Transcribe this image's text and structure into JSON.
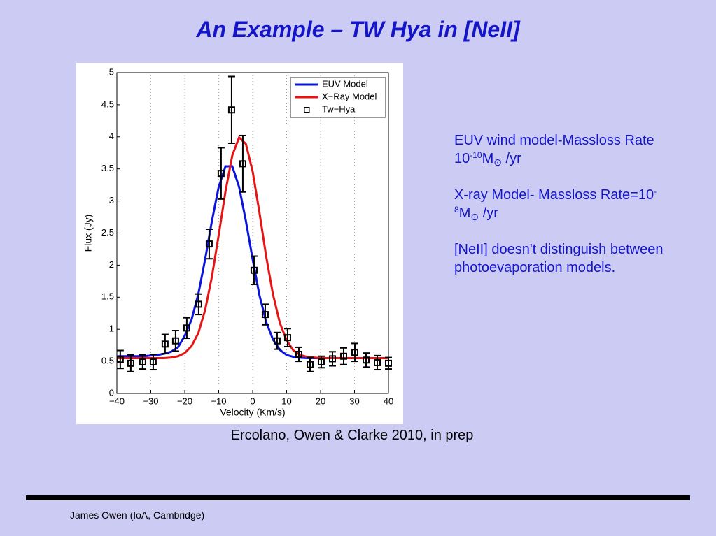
{
  "title": "An Example – TW Hya in [NeII]",
  "chart_data": {
    "type": "line",
    "xlabel": "Velocity (Km/s)",
    "ylabel": "Flux (Jy)",
    "xlim": [
      -40,
      40
    ],
    "ylim": [
      0,
      5
    ],
    "xticks": [
      {
        "value": -40,
        "label": "−40"
      },
      {
        "value": -30,
        "label": "−30"
      },
      {
        "value": -20,
        "label": "−20"
      },
      {
        "value": -10,
        "label": "−10"
      },
      0,
      10,
      20,
      30,
      40
    ],
    "yticks": [
      0,
      0.5,
      1,
      1.5,
      2,
      2.5,
      3,
      3.5,
      4,
      4.5,
      5
    ],
    "grid": "x",
    "legend": "upper right",
    "series": [
      {
        "name": "EUV Model",
        "color": "#0a14dc",
        "style": "line",
        "x": [
          -40,
          -38,
          -36,
          -34,
          -32,
          -30,
          -28,
          -26,
          -24,
          -22,
          -20,
          -18,
          -16,
          -14,
          -12,
          -10,
          -8,
          -6,
          -4,
          -2,
          0,
          2,
          4,
          6,
          8,
          10,
          12,
          14,
          16,
          18,
          20,
          22,
          24,
          26,
          28,
          30,
          32,
          34,
          36,
          38,
          40
        ],
        "values": [
          0.58,
          0.58,
          0.58,
          0.58,
          0.58,
          0.59,
          0.6,
          0.62,
          0.65,
          0.72,
          0.9,
          1.15,
          1.55,
          2.09,
          2.69,
          3.22,
          3.54,
          3.54,
          3.22,
          2.69,
          2.09,
          1.53,
          1.11,
          0.84,
          0.68,
          0.6,
          0.57,
          0.557,
          0.55,
          0.55,
          0.55,
          0.55,
          0.55,
          0.55,
          0.55,
          0.55,
          0.55,
          0.55,
          0.55,
          0.55,
          0.55
        ]
      },
      {
        "name": "X−Ray Model",
        "color": "#e61414",
        "style": "line",
        "x": [
          -40,
          -38,
          -36,
          -34,
          -32,
          -30,
          -28,
          -26,
          -24,
          -22,
          -20,
          -18,
          -16,
          -14,
          -12,
          -10,
          -8,
          -6,
          -4,
          -2,
          0,
          2,
          4,
          6,
          8,
          10,
          12,
          14,
          16,
          18,
          20,
          22,
          24,
          26,
          28,
          30,
          32,
          34,
          36,
          38,
          40
        ],
        "values": [
          0.55,
          0.55,
          0.55,
          0.55,
          0.55,
          0.55,
          0.55,
          0.55,
          0.56,
          0.58,
          0.63,
          0.74,
          0.94,
          1.3,
          1.82,
          2.47,
          3.15,
          3.71,
          3.99,
          3.89,
          3.46,
          2.82,
          2.13,
          1.54,
          1.1,
          0.83,
          0.67,
          0.6,
          0.57,
          0.56,
          0.55,
          0.55,
          0.55,
          0.55,
          0.55,
          0.55,
          0.55,
          0.55,
          0.55,
          0.55,
          0.55
        ]
      },
      {
        "name": "Tw−Hya",
        "color": "#000000",
        "style": "errorbar",
        "x": [
          -39,
          -35.9,
          -32.4,
          -29.3,
          -25.8,
          -22.7,
          -19.4,
          -15.9,
          -12.8,
          -9.3,
          -6.2,
          -2.9,
          0.4,
          3.7,
          7.2,
          10.3,
          13.6,
          16.9,
          20.2,
          23.5,
          26.8,
          30.1,
          33.4,
          36.7,
          40
        ],
        "values": [
          0.53,
          0.47,
          0.49,
          0.49,
          0.77,
          0.82,
          1.02,
          1.39,
          2.33,
          3.43,
          4.42,
          3.58,
          1.92,
          1.23,
          0.82,
          0.87,
          0.61,
          0.45,
          0.49,
          0.54,
          0.58,
          0.64,
          0.52,
          0.48,
          0.47
        ],
        "errors": [
          0.14,
          0.13,
          0.11,
          0.12,
          0.15,
          0.16,
          0.16,
          0.16,
          0.23,
          0.4,
          0.52,
          0.44,
          0.22,
          0.16,
          0.13,
          0.14,
          0.11,
          0.11,
          0.09,
          0.11,
          0.13,
          0.14,
          0.11,
          0.11,
          0.09
        ]
      }
    ]
  },
  "notes": [
    {
      "text": "EUV wind model-Massloss Rate 10",
      "exp": "-10",
      "unit": "M",
      "sub": "⊙",
      "tail": " /yr"
    },
    {
      "text": "X-ray Model- Massloss Rate=10",
      "exp": "-8",
      "unit": "M",
      "sub": "⊙",
      "tail": " /yr"
    },
    {
      "text": "[NeII] doesn't distinguish between photoevaporation models."
    }
  ],
  "caption": "Ercolano, Owen & Clarke 2010, in prep",
  "footer": "James Owen (IoA, Cambridge)"
}
